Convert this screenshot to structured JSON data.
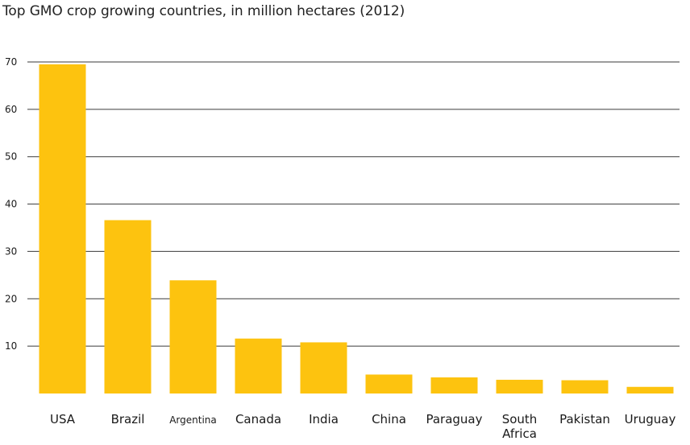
{
  "chart_data": {
    "type": "bar",
    "title": "Top GMO crop growing countries, in million hectares (2012)",
    "categories": [
      "USA",
      "Brazil",
      "Argentina",
      "Canada",
      "India",
      "China",
      "Paraguay",
      "South Africa",
      "Pakistan",
      "Uruguay"
    ],
    "values": [
      69.5,
      36.6,
      23.9,
      11.6,
      10.8,
      4.0,
      3.4,
      2.9,
      2.8,
      1.4
    ],
    "xlabel": "",
    "ylabel": "",
    "ylim": [
      0,
      70
    ],
    "yticks": [
      10,
      20,
      30,
      40,
      50,
      60,
      70
    ],
    "grid": true,
    "bar_color": "#fdc30f",
    "grid_color": "#3a3a3a"
  }
}
